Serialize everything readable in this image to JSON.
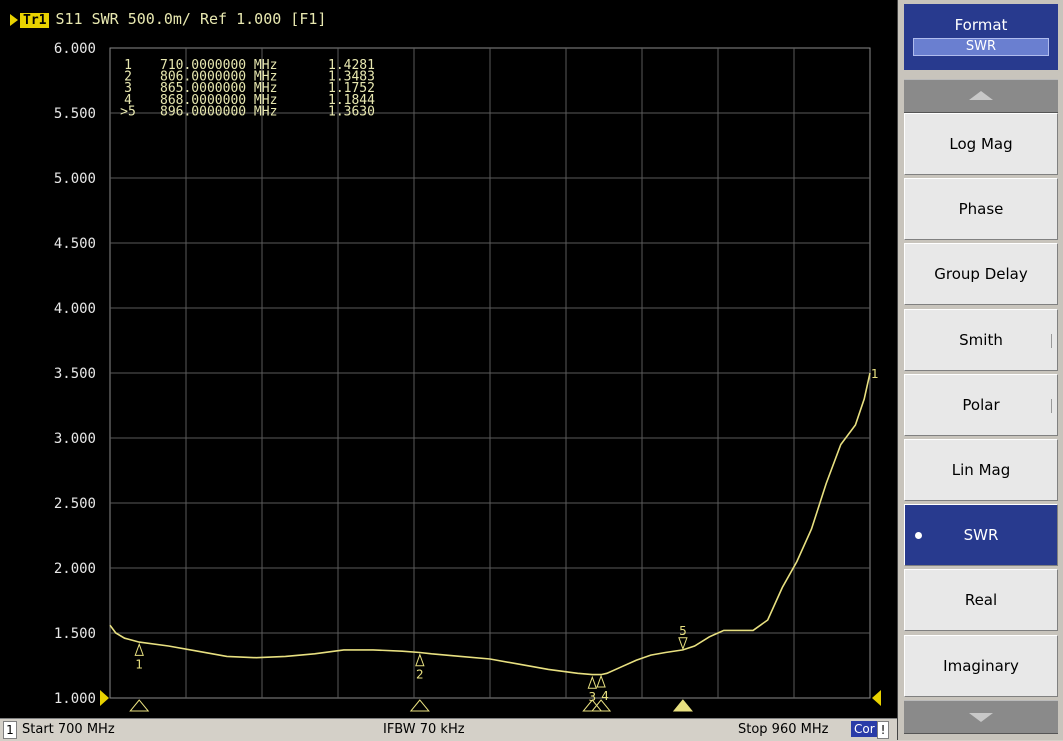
{
  "trace": {
    "label": "Tr1",
    "param": "S11",
    "format": "SWR",
    "scale": "500.0m/",
    "ref": "Ref 1.000",
    "function": "[F1]"
  },
  "markers": [
    {
      "id": "1",
      "freq": "710.0000000 MHz",
      "value": "1.4281"
    },
    {
      "id": "2",
      "freq": "806.0000000 MHz",
      "value": "1.3483"
    },
    {
      "id": "3",
      "freq": "865.0000000 MHz",
      "value": "1.1752"
    },
    {
      "id": "4",
      "freq": "868.0000000 MHz",
      "value": "1.1844"
    },
    {
      "id": ">5",
      "freq": "896.0000000 MHz",
      "value": "1.3630"
    }
  ],
  "chart_data": {
    "type": "line",
    "title": "",
    "xlabel": "",
    "ylabel": "",
    "x_unit": "MHz",
    "xlim": [
      700,
      960
    ],
    "ylim": [
      1.0,
      6.0
    ],
    "y_ticks": [
      "6.000",
      "5.500",
      "5.000",
      "4.500",
      "4.000",
      "3.500",
      "3.000",
      "2.500",
      "2.000",
      "1.500",
      "1.000"
    ],
    "grid": true,
    "trace_color": "#e8e080",
    "series": [
      {
        "name": "",
        "x": [
          700,
          702,
          705,
          710,
          720,
          730,
          740,
          750,
          760,
          770,
          780,
          790,
          800,
          806,
          810,
          820,
          830,
          840,
          850,
          860,
          865,
          868,
          870,
          875,
          880,
          885,
          890,
          896,
          900,
          905,
          910,
          915,
          920,
          925,
          930,
          935,
          940,
          945,
          950,
          955,
          958,
          960
        ],
        "y": [
          1.56,
          1.5,
          1.46,
          1.43,
          1.4,
          1.36,
          1.32,
          1.31,
          1.32,
          1.34,
          1.37,
          1.37,
          1.36,
          1.35,
          1.34,
          1.32,
          1.3,
          1.26,
          1.22,
          1.19,
          1.18,
          1.18,
          1.19,
          1.24,
          1.29,
          1.33,
          1.35,
          1.37,
          1.4,
          1.47,
          1.52,
          1.52,
          1.52,
          1.6,
          1.85,
          2.05,
          2.3,
          2.65,
          2.95,
          3.1,
          3.3,
          3.5
        ]
      }
    ],
    "marker_x": [
      710,
      806,
      865,
      868,
      896
    ],
    "marker_y": [
      1.4281,
      1.3483,
      1.1752,
      1.1844,
      1.363
    ],
    "end_label": "1"
  },
  "status": {
    "channel": "1",
    "start": "Start 700 MHz",
    "ifbw": "IFBW 70 kHz",
    "stop": "Stop 960 MHz",
    "cor": "Cor",
    "flag": "!"
  },
  "softkeys": {
    "title": "Format",
    "current": "SWR",
    "scroll_up_icon": "triangle-up-icon",
    "scroll_down_icon": "triangle-down-icon",
    "items": [
      {
        "label": "Log Mag",
        "selected": false
      },
      {
        "label": "Phase",
        "selected": false
      },
      {
        "label": "Group Delay",
        "selected": false
      },
      {
        "label": "Smith",
        "selected": false
      },
      {
        "label": "Polar",
        "selected": false
      },
      {
        "label": "Lin Mag",
        "selected": false
      },
      {
        "label": "SWR",
        "selected": true
      },
      {
        "label": "Real",
        "selected": false
      },
      {
        "label": "Imaginary",
        "selected": false
      }
    ]
  }
}
